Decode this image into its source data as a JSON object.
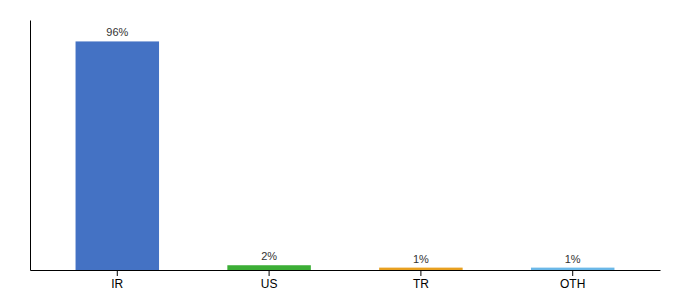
{
  "chart_data": {
    "type": "bar",
    "categories": [
      "IR",
      "US",
      "TR",
      "OTH"
    ],
    "values": [
      96,
      2,
      1,
      1
    ],
    "value_labels": [
      "96%",
      "2%",
      "1%",
      "1%"
    ],
    "colors": [
      "#4472C4",
      "#3CAE36",
      "#E8A020",
      "#6BB8E8"
    ],
    "ylim": [
      0,
      105
    ],
    "yticks": [],
    "data_labels": true,
    "tick_labels": "x"
  }
}
